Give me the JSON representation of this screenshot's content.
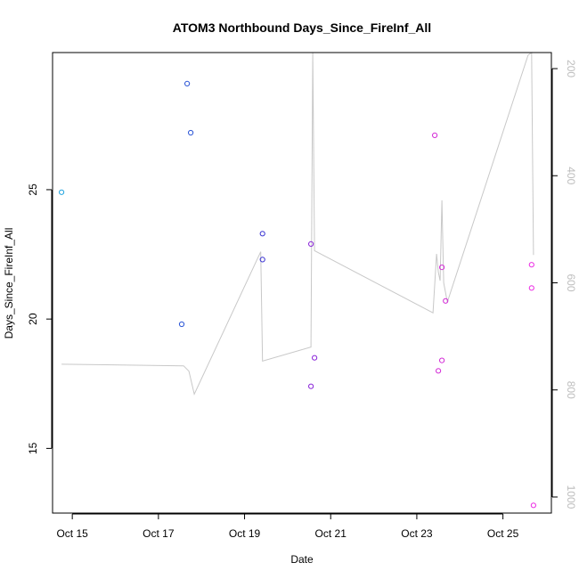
{
  "chart_data": {
    "type": "scatter",
    "title": "ATOM3 Northbound Days_Since_FireInf_All",
    "xlabel": "Date",
    "ylabel": "Days_Since_FireInf_All",
    "x_ticks": [
      {
        "date": "2023-10-15",
        "label": "Oct 15"
      },
      {
        "date": "2023-10-17",
        "label": "Oct 17"
      },
      {
        "date": "2023-10-19",
        "label": "Oct 19"
      },
      {
        "date": "2023-10-21",
        "label": "Oct 21"
      },
      {
        "date": "2023-10-23",
        "label": "Oct 23"
      },
      {
        "date": "2023-10-25",
        "label": "Oct 25"
      }
    ],
    "xlim": [
      "2023-10-14 13:00",
      "2023-10-26 03:00"
    ],
    "ylim": [
      12.5,
      30.3
    ],
    "y_ticks": [
      15,
      20,
      25
    ],
    "y2lim": [
      1030,
      170
    ],
    "y2_ticks": [
      200,
      400,
      600,
      800,
      1000
    ],
    "grid": false,
    "points": [
      {
        "x": "2023-10-14 18:00",
        "y": 24.9,
        "color": "#1fa3df"
      },
      {
        "x": "2023-10-17 13:00",
        "y": 19.8,
        "color": "#2b55d6"
      },
      {
        "x": "2023-10-17 16:00",
        "y": 29.1,
        "color": "#2b55d6"
      },
      {
        "x": "2023-10-17 18:00",
        "y": 27.2,
        "color": "#2b55d6"
      },
      {
        "x": "2023-10-19 10:00",
        "y": 23.3,
        "color": "#3a34d2"
      },
      {
        "x": "2023-10-19 10:00",
        "y": 22.3,
        "color": "#3a34d2"
      },
      {
        "x": "2023-10-20 13:00",
        "y": 22.9,
        "color": "#8a24d9"
      },
      {
        "x": "2023-10-20 13:00",
        "y": 17.4,
        "color": "#8a24d9"
      },
      {
        "x": "2023-10-20 15:00",
        "y": 18.5,
        "color": "#8a24d9"
      },
      {
        "x": "2023-10-23 10:00",
        "y": 27.1,
        "color": "#d329d6"
      },
      {
        "x": "2023-10-23 12:00",
        "y": 18.0,
        "color": "#d329d6"
      },
      {
        "x": "2023-10-23 14:00",
        "y": 22.0,
        "color": "#d329d6"
      },
      {
        "x": "2023-10-23 14:00",
        "y": 18.4,
        "color": "#d329d6"
      },
      {
        "x": "2023-10-23 16:00",
        "y": 20.7,
        "color": "#d329d6"
      },
      {
        "x": "2023-10-25 16:00",
        "y": 22.1,
        "color": "#ec2ce4"
      },
      {
        "x": "2023-10-25 16:00",
        "y": 21.2,
        "color": "#ec2ce4"
      },
      {
        "x": "2023-10-25 17:00",
        "y": 12.8,
        "color": "#ec2ce4"
      }
    ],
    "line_series": {
      "axis": "right",
      "color": "#c8c8c8",
      "points": [
        {
          "x": "2023-10-14 18:00",
          "y": 752
        },
        {
          "x": "2023-10-17 14:00",
          "y": 755
        },
        {
          "x": "2023-10-17 17:00",
          "y": 765
        },
        {
          "x": "2023-10-17 20:00",
          "y": 808
        },
        {
          "x": "2023-10-19 09:00",
          "y": 542
        },
        {
          "x": "2023-10-19 10:00",
          "y": 746
        },
        {
          "x": "2023-10-20 13:00",
          "y": 720
        },
        {
          "x": "2023-10-20 14:00",
          "y": 170
        },
        {
          "x": "2023-10-20 15:00",
          "y": 540
        },
        {
          "x": "2023-10-23 09:00",
          "y": 656
        },
        {
          "x": "2023-10-23 11:00",
          "y": 546
        },
        {
          "x": "2023-10-23 12:00",
          "y": 580
        },
        {
          "x": "2023-10-23 13:00",
          "y": 596
        },
        {
          "x": "2023-10-23 14:00",
          "y": 446
        },
        {
          "x": "2023-10-23 15:00",
          "y": 600
        },
        {
          "x": "2023-10-23 17:00",
          "y": 636
        },
        {
          "x": "2023-10-25 14:00",
          "y": 175
        },
        {
          "x": "2023-10-25 16:00",
          "y": 170
        },
        {
          "x": "2023-10-25 17:00",
          "y": 548
        }
      ]
    }
  }
}
